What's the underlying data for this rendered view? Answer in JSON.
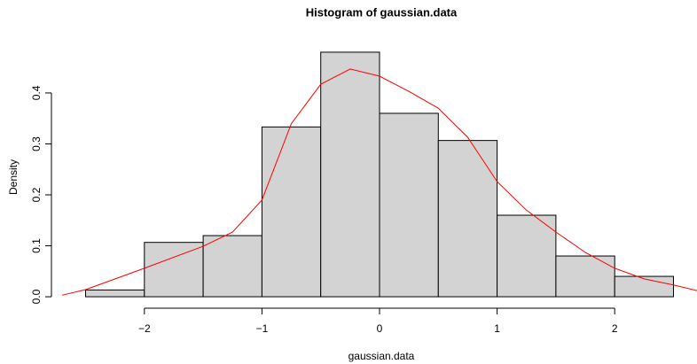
{
  "chart_data": {
    "type": "histogram",
    "title": "Histogram of gaussian.data",
    "xlabel": "gaussian.data",
    "ylabel": "Density",
    "bins": [
      -2.5,
      -2,
      -1.5,
      -1,
      -0.5,
      0,
      0.5,
      1,
      1.5,
      2,
      2.5
    ],
    "values": [
      0.0133,
      0.1067,
      0.12,
      0.3333,
      0.48,
      0.36,
      0.3067,
      0.16,
      0.08,
      0.04
    ],
    "color": "#d3d3d3",
    "edge_color": "#000000",
    "xlim": [
      -2.7,
      2.7
    ],
    "ylim": [
      -0.019,
      0.499
    ],
    "xticks": [
      {
        "value": -2,
        "label": "−2"
      },
      {
        "value": -1,
        "label": "−1"
      },
      0,
      1,
      2
    ],
    "yticks": [
      {
        "value": 0,
        "label": "0.0"
      },
      0.1,
      0.2,
      0.3,
      0.4
    ],
    "density_curve": {
      "color": "#ff0000",
      "x": [
        -2.7,
        -2.5,
        -2,
        -1.5,
        -1.25,
        -1,
        -0.75,
        -0.5,
        -0.25,
        0,
        0.25,
        0.5,
        0.75,
        1,
        1.25,
        1.5,
        1.75,
        2,
        2.25,
        2.5,
        2.7
      ],
      "values": [
        0.003,
        0.014,
        0.056,
        0.099,
        0.127,
        0.19,
        0.34,
        0.417,
        0.447,
        0.433,
        0.403,
        0.37,
        0.313,
        0.226,
        0.17,
        0.127,
        0.087,
        0.056,
        0.035,
        0.023,
        0.012
      ]
    }
  }
}
